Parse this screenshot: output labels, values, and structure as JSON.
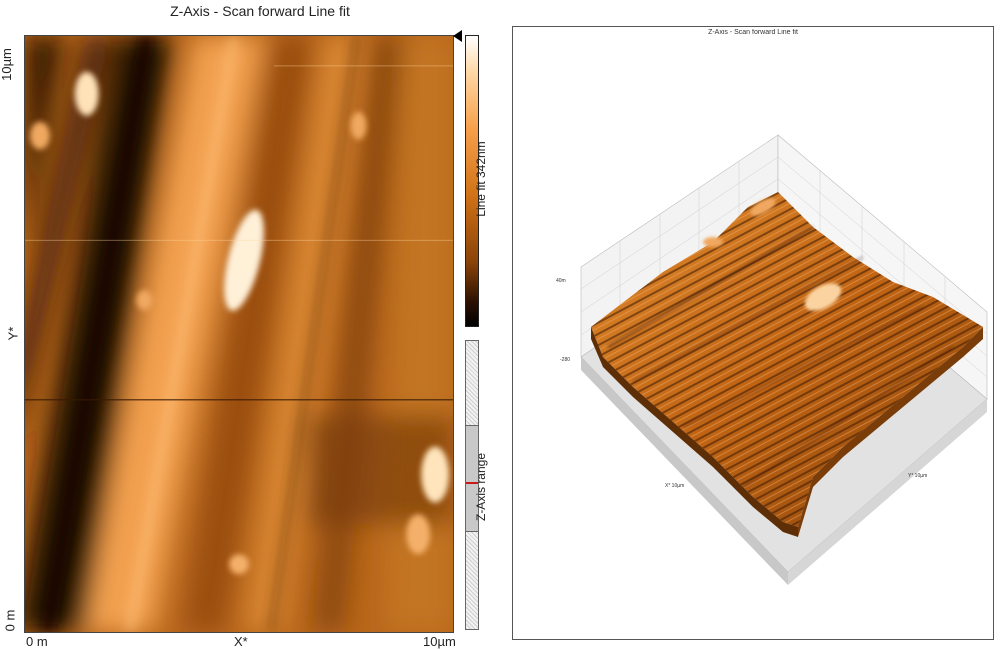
{
  "left_view": {
    "title": "Z-Axis - Scan forward   Line fit",
    "y_axis": {
      "top_label": "10µm",
      "mid_label": "Y*",
      "bottom_label": "0 m"
    },
    "x_axis": {
      "left_label": "0 m",
      "mid_label": "X*",
      "right_label": "10µm"
    },
    "colorbar_label": "Line fit 342nm",
    "zrange_label": "Z-Axis range",
    "colors": {
      "dark": "#1a0a02",
      "mid": "#c4721a",
      "light": "#fff2e0"
    }
  },
  "right_view": {
    "title": "Z-Axis - Scan forward   Line fit",
    "z_top_label": "40m",
    "z_bottom_label": "-280",
    "x_axis_label": "X* 10µm",
    "y_axis_label": "Y* 10µm"
  }
}
